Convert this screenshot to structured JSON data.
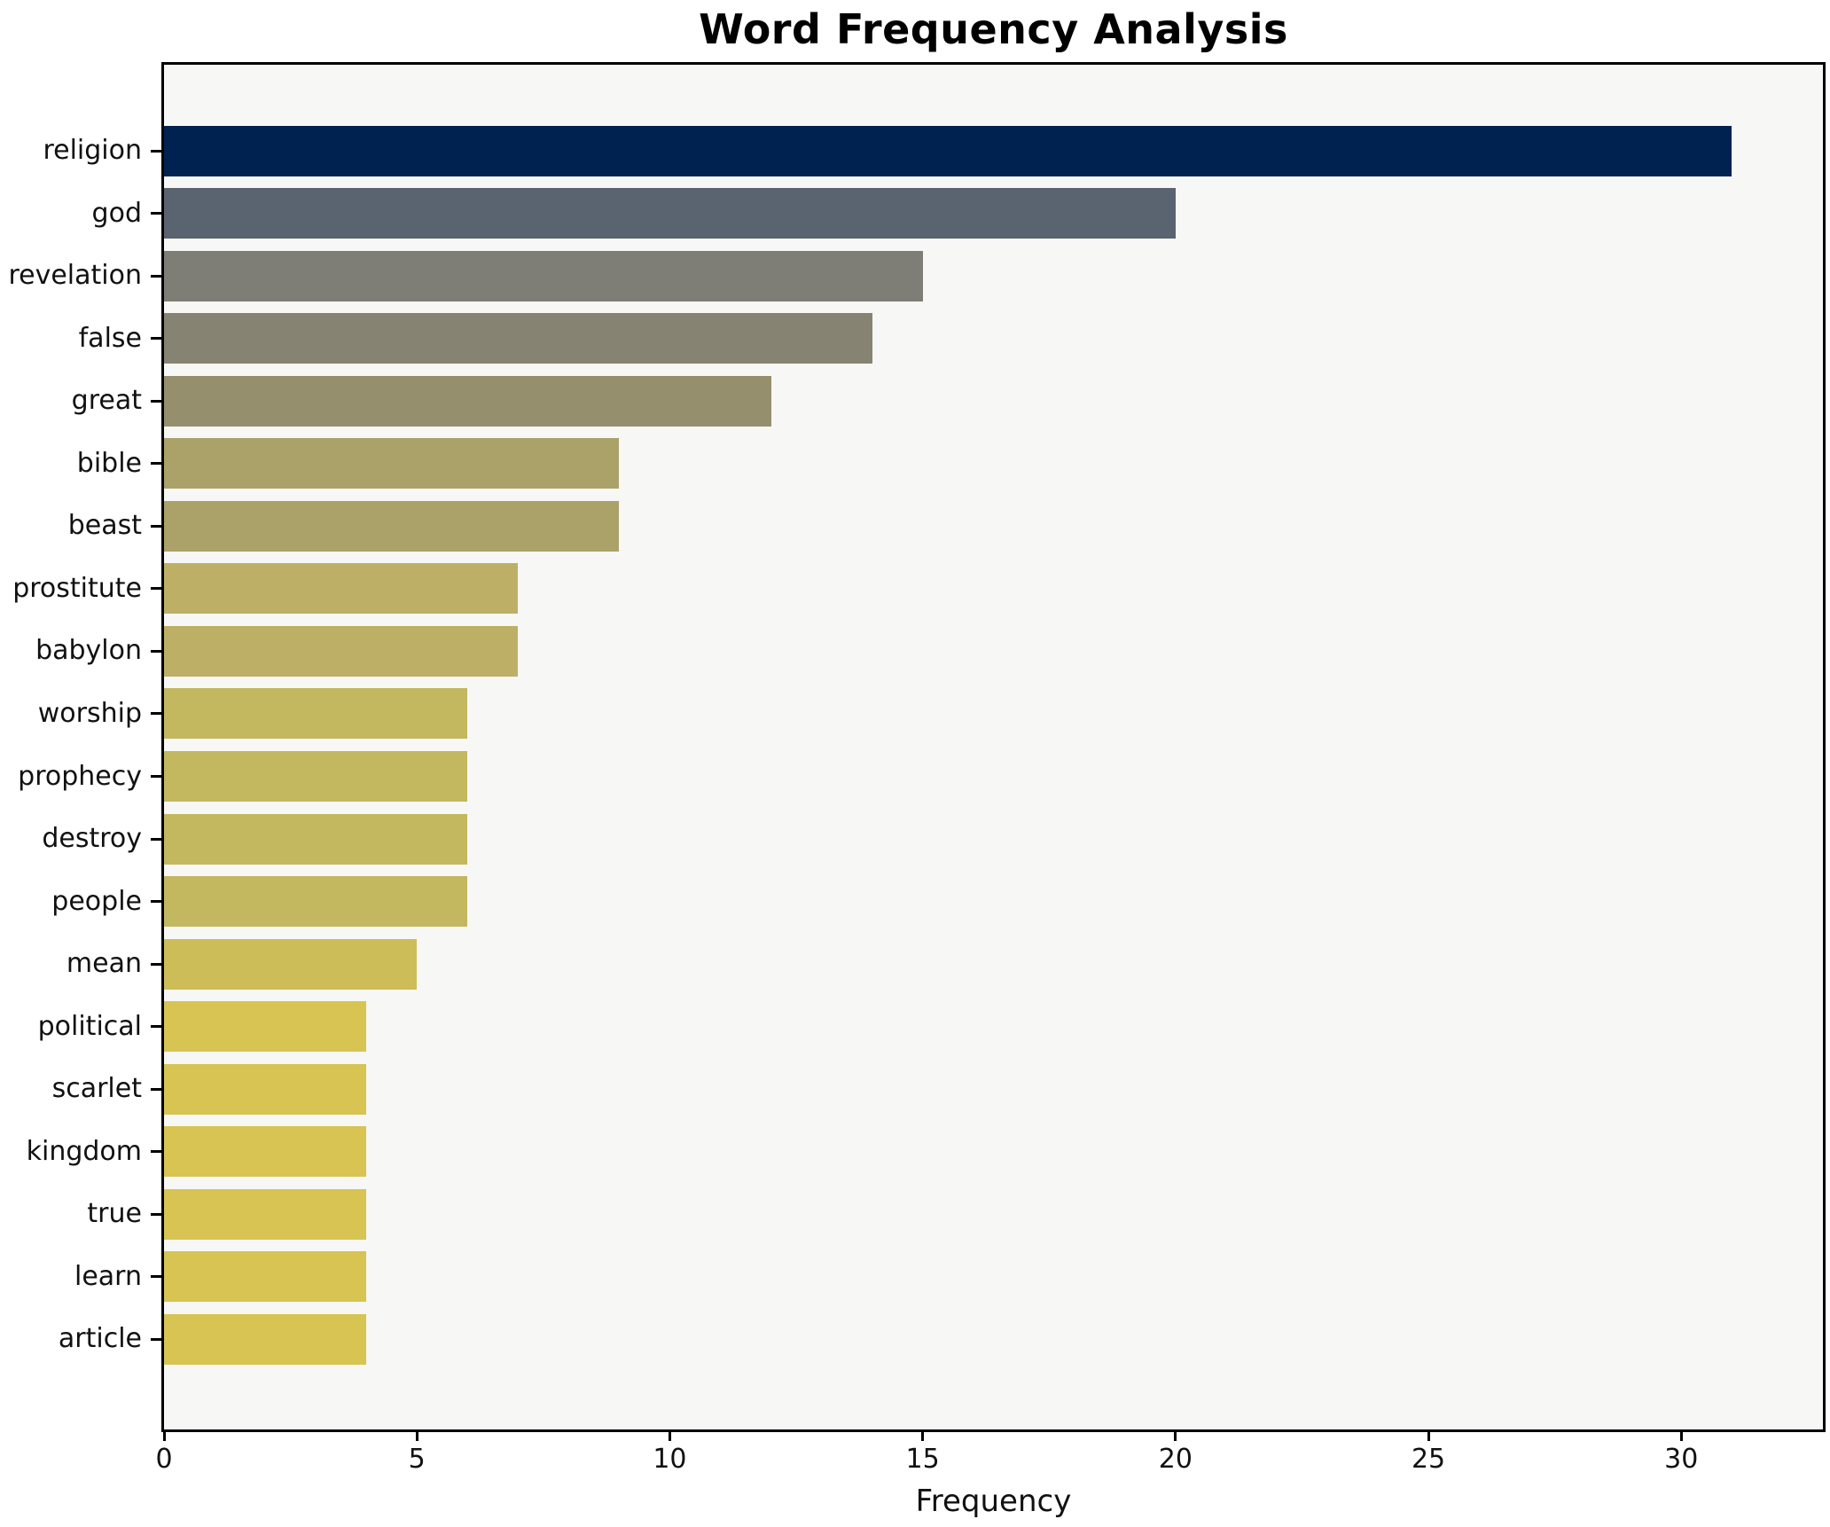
{
  "title": "Word Frequency Analysis",
  "chart_data": {
    "type": "bar",
    "orientation": "horizontal",
    "title": "Word Frequency Analysis",
    "xlabel": "Frequency",
    "ylabel": "",
    "categories": [
      "religion",
      "god",
      "revelation",
      "false",
      "great",
      "bible",
      "beast",
      "prostitute",
      "babylon",
      "worship",
      "prophecy",
      "destroy",
      "people",
      "mean",
      "political",
      "scarlet",
      "kingdom",
      "true",
      "learn",
      "article"
    ],
    "values": [
      31,
      20,
      15,
      14,
      12,
      9,
      9,
      7,
      7,
      6,
      6,
      6,
      6,
      5,
      4,
      4,
      4,
      4,
      4,
      4
    ],
    "bar_colors": [
      "#002250",
      "#5a6370",
      "#7f7e76",
      "#878372",
      "#968f6e",
      "#aba26a",
      "#aba26a",
      "#bdb066",
      "#bdb066",
      "#c3b75f",
      "#c3b75f",
      "#c3b75f",
      "#c3b75f",
      "#cdbd58",
      "#d7c452",
      "#d7c452",
      "#d7c452",
      "#d7c452",
      "#d7c452",
      "#d7c452"
    ],
    "xlim": [
      0,
      32.8
    ],
    "xticks": [
      0,
      5,
      10,
      15,
      20,
      25,
      30
    ],
    "grid": false,
    "legend": null,
    "plot_bg": "#f7f7f5",
    "figure_bg": "#ffffff",
    "spine_color": "#000000",
    "text_color": "#111111"
  }
}
